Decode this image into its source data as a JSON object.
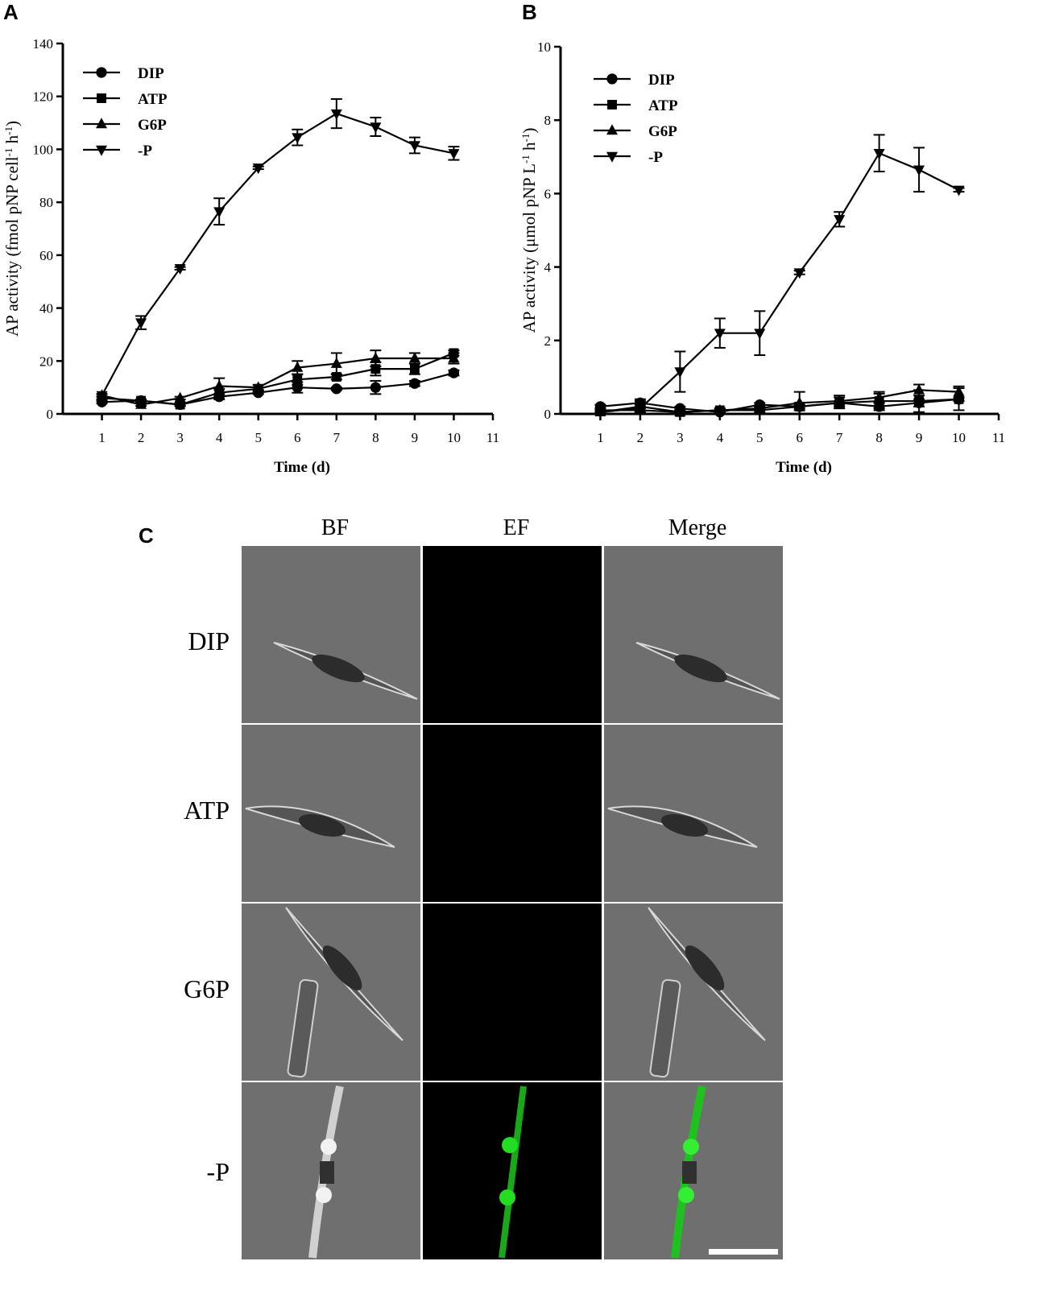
{
  "panels": {
    "a": "A",
    "b": "B",
    "c": "C"
  },
  "chart_data": [
    {
      "type": "line",
      "panel": "A",
      "xlabel": "Time (d)",
      "ylabel": "AP activity (fmol pNP cell-1 h-1)",
      "xlim": [
        0,
        11
      ],
      "ylim": [
        0,
        140
      ],
      "x_ticks": [
        1,
        2,
        3,
        4,
        5,
        6,
        7,
        8,
        9,
        10,
        11
      ],
      "y_ticks": [
        0,
        20,
        40,
        60,
        80,
        100,
        120,
        140
      ],
      "grid": false,
      "legend_position": "top-left",
      "x": [
        1,
        2,
        3,
        4,
        5,
        6,
        7,
        8,
        9,
        10
      ],
      "series": [
        {
          "name": "DIP",
          "marker": "circle",
          "values": [
            4.5,
            5,
            3.5,
            6.5,
            8,
            10,
            9.5,
            10,
            11.5,
            15.5
          ],
          "errors": [
            0.5,
            0.5,
            0.5,
            1,
            0.5,
            2,
            0.5,
            2.5,
            1,
            1
          ]
        },
        {
          "name": "ATP",
          "marker": "square",
          "values": [
            6,
            5,
            3.5,
            8,
            9.5,
            13,
            14,
            17,
            17,
            23
          ],
          "errors": [
            0.5,
            0.5,
            0.5,
            1.5,
            0.5,
            2,
            1,
            2.5,
            2,
            1
          ]
        },
        {
          "name": "G6P",
          "marker": "triangle-up",
          "values": [
            7,
            3.5,
            6,
            10.5,
            10,
            17.5,
            19,
            21,
            21,
            21
          ],
          "errors": [
            0.5,
            0.5,
            0.5,
            3,
            1,
            2.5,
            4,
            3,
            2,
            2
          ]
        },
        {
          "name": "-P",
          "marker": "triangle-down",
          "values": [
            7,
            34.5,
            55,
            76.5,
            93,
            104.5,
            113.5,
            108.5,
            101.5,
            98.5
          ],
          "errors": [
            0.5,
            2.5,
            0.5,
            5,
            0.5,
            3,
            5.5,
            3.5,
            3,
            2.5
          ]
        }
      ]
    },
    {
      "type": "line",
      "panel": "B",
      "xlabel": "Time (d)",
      "ylabel": "AP activity (μmol pNP L-1 h-1)",
      "xlim": [
        0,
        11
      ],
      "ylim": [
        0,
        10
      ],
      "x_ticks": [
        1,
        2,
        3,
        4,
        5,
        6,
        7,
        8,
        9,
        10,
        11
      ],
      "y_ticks": [
        0,
        2,
        4,
        6,
        8,
        10
      ],
      "grid": false,
      "legend_position": "top-left",
      "x": [
        1,
        2,
        3,
        4,
        5,
        6,
        7,
        8,
        9,
        10
      ],
      "series": [
        {
          "name": "DIP",
          "marker": "circle",
          "values": [
            0.2,
            0.3,
            0.15,
            0.05,
            0.25,
            0.2,
            0.3,
            0.2,
            0.3,
            0.4
          ],
          "errors": [
            0.05,
            0.1,
            0.05,
            0.05,
            0.05,
            0.05,
            0.05,
            0.1,
            0.1,
            0.05
          ]
        },
        {
          "name": "ATP",
          "marker": "square",
          "values": [
            0.1,
            0.1,
            0.05,
            0.1,
            0.1,
            0.2,
            0.3,
            0.35,
            0.35,
            0.4
          ],
          "errors": [
            0.05,
            0.05,
            0.05,
            0.05,
            0.05,
            0.1,
            0.15,
            0.2,
            0.3,
            0.3
          ]
        },
        {
          "name": "G6P",
          "marker": "triangle-up",
          "values": [
            0.05,
            0.2,
            0.05,
            0.1,
            0.15,
            0.3,
            0.35,
            0.45,
            0.65,
            0.6
          ],
          "errors": [
            0.05,
            0.15,
            0.05,
            0.05,
            0.05,
            0.3,
            0.15,
            0.15,
            0.15,
            0.15
          ]
        },
        {
          "name": "-P",
          "marker": "triangle-down",
          "values": [
            0.05,
            0.15,
            1.15,
            2.2,
            2.2,
            3.85,
            5.3,
            7.1,
            6.65,
            6.1
          ],
          "errors": [
            0.05,
            0.1,
            0.55,
            0.4,
            0.6,
            0.05,
            0.2,
            0.5,
            0.6,
            0.05
          ]
        }
      ]
    }
  ],
  "micrograph": {
    "columns": [
      "BF",
      "EF",
      "Merge"
    ],
    "rows": [
      "DIP",
      "ATP",
      "G6P",
      "-P"
    ],
    "colors": {
      "bf_background": "#6f6f6f",
      "ef_background": "#000000",
      "fluorescence": "#22dd22",
      "scale_bar": "#ffffff"
    }
  }
}
